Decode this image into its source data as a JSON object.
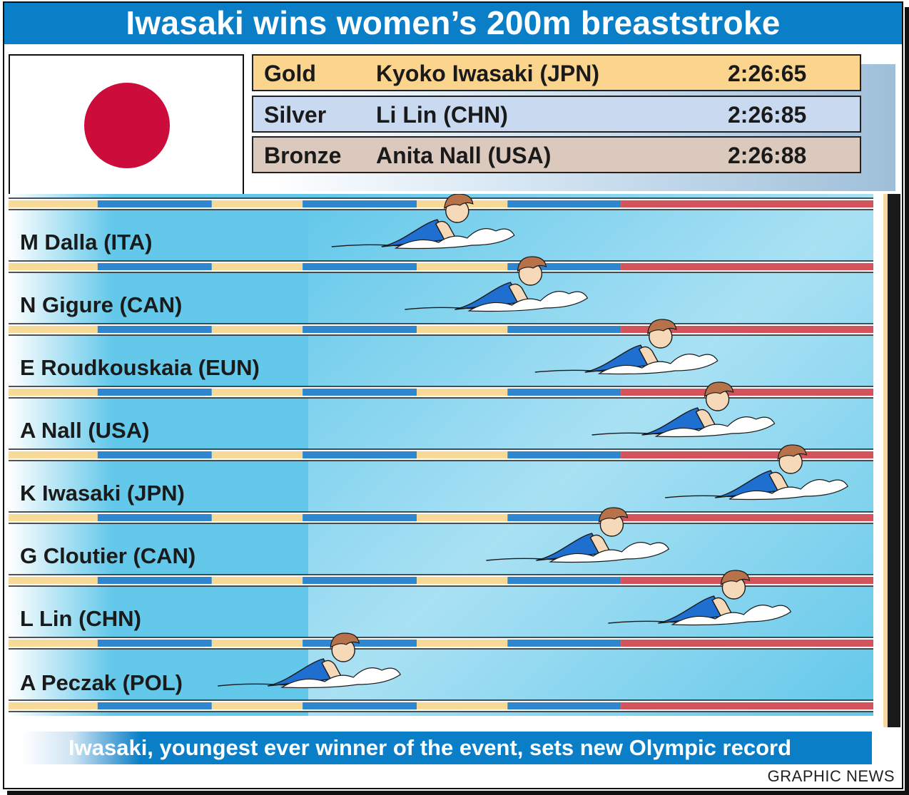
{
  "title": "Iwasaki wins women’s 200m breaststroke",
  "flag": {
    "name": "Japan",
    "field_color": "#ffffff",
    "disc_color": "#cc0c3b"
  },
  "results": [
    {
      "medal": "Gold",
      "name": "Kyoko Iwasaki (JPN)",
      "time": "2:26:65",
      "color": "#fbd48e"
    },
    {
      "medal": "Silver",
      "name": "Li Lin (CHN)",
      "time": "2:26:85",
      "color": "#c9d9ef"
    },
    {
      "medal": "Bronze",
      "name": "Anita Nall (USA)",
      "time": "2:26:88",
      "color": "#dcc9bd"
    }
  ],
  "lanes": [
    {
      "swimmer": "M Dalla (ITA)",
      "progress": 0.52
    },
    {
      "swimmer": "N Gigure (CAN)",
      "progress": 0.61
    },
    {
      "swimmer": "E Roudkouskaia (EUN)",
      "progress": 0.77
    },
    {
      "swimmer": "A Nall (USA)",
      "progress": 0.84
    },
    {
      "swimmer": "K Iwasaki (JPN)",
      "progress": 0.93
    },
    {
      "swimmer": "G Cloutier (CAN)",
      "progress": 0.71
    },
    {
      "swimmer": "L Lin (CHN)",
      "progress": 0.86
    },
    {
      "swimmer": "A Peczak (POL)",
      "progress": 0.38
    }
  ],
  "colors": {
    "water": "#63c8ea",
    "rope_yellow": "#f7d998",
    "rope_blue": "#2e86cf",
    "rope_red": "#d2535c",
    "skin": "#f6d9b9",
    "hair": "#b87249",
    "swimsuit": "#1f6fd0"
  },
  "footer": "Iwasaki,  youngest ever winner of the event, sets new Olympic record",
  "credit": "GRAPHIC NEWS"
}
